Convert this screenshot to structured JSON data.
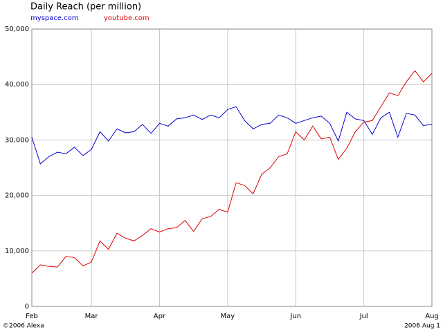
{
  "chart_data": {
    "type": "line",
    "title": "Daily Reach (per million)",
    "categories": [
      "Feb",
      null,
      null,
      null,
      null,
      null,
      null,
      "Mar",
      null,
      null,
      null,
      null,
      null,
      null,
      null,
      "Apr",
      null,
      null,
      null,
      null,
      null,
      null,
      null,
      "May",
      null,
      null,
      null,
      null,
      null,
      null,
      null,
      "Jun",
      null,
      null,
      null,
      null,
      null,
      null,
      null,
      "Jul",
      null,
      null,
      null,
      null,
      null,
      null,
      null,
      "Aug"
    ],
    "series": [
      {
        "name": "myspace.com",
        "color": "#0000cc",
        "values": [
          30500,
          25700,
          27000,
          27800,
          27500,
          28700,
          27200,
          28300,
          31500,
          29800,
          32000,
          31300,
          31500,
          32800,
          31200,
          33000,
          32500,
          33800,
          34000,
          34500,
          33700,
          34500,
          34000,
          35500,
          36000,
          33500,
          32000,
          32800,
          33000,
          34500,
          34000,
          33000,
          33500,
          34000,
          34300,
          33000,
          29800,
          35000,
          33800,
          33500,
          31000,
          34000,
          35000,
          30500,
          34800,
          34500,
          32600,
          32800
        ]
      },
      {
        "name": "youtube.com",
        "color": "#dd0000",
        "values": [
          6000,
          7500,
          7200,
          7100,
          9000,
          8800,
          7300,
          8000,
          11800,
          10300,
          13200,
          12300,
          11800,
          12800,
          14000,
          13400,
          14000,
          14200,
          15500,
          13500,
          15800,
          16200,
          17500,
          17000,
          22300,
          21800,
          20300,
          23800,
          25000,
          27000,
          27500,
          31500,
          30000,
          32500,
          30200,
          30500,
          26500,
          28500,
          31500,
          33200,
          33500,
          36000,
          38500,
          38000,
          40500,
          42500,
          40500,
          42000
        ]
      }
    ],
    "ylim": [
      0,
      50000
    ],
    "yticks": [
      0,
      {
        "value": 10000,
        "label": "10,000"
      },
      {
        "value": 20000,
        "label": "20,000"
      },
      {
        "value": 30000,
        "label": "30,000"
      },
      {
        "value": 40000,
        "label": "40,000"
      },
      {
        "value": 50000,
        "label": "50,000"
      }
    ],
    "grid": true,
    "copyright": "©2006 Alexa",
    "date": "2006 Aug 1"
  }
}
